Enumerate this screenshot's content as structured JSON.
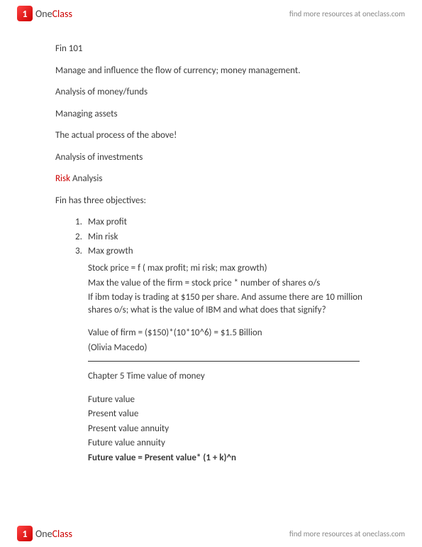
{
  "brand": {
    "icon_bg_start": "#ff4444",
    "icon_bg_end": "#cc0000",
    "one": "One",
    "class": "Class",
    "tagline": "find more resources at oneclass.com"
  },
  "colors": {
    "text": "#3a3a3a",
    "risk": "#cc0000",
    "tagline": "#888888",
    "divider": "#333333",
    "background": "#ffffff"
  },
  "typography": {
    "body_fontsize": 13,
    "tagline_fontsize": 11,
    "brand_fontsize": 14
  },
  "doc": {
    "title": "Fin 101",
    "p1": "Manage and influence the flow of currency; money management.",
    "p2": "Analysis of money/funds",
    "p3": "Managing assets",
    "p4": "The actual process of the above!",
    "p5": "Analysis of investments",
    "risk_word": "Risk",
    "p6_rest": " Analysis",
    "p7": "Fin has three objectives:",
    "objectives": [
      "Max profit",
      "Min risk",
      "Max growth"
    ],
    "sub1": "Stock price = f ( max profit; mi risk; max growth)",
    "sub2": "Max the value of the firm = stock price * number of shares o/s",
    "sub3": "If ibm today is trading at $150 per share. And assume there are 10 million shares o/s; what is the value of IBM and what does that signify?",
    "sub4": "Value of firm = ($150)*(10*10^6) = $1.5 Billion",
    "sub5": "(Olivia Macedo)",
    "chapter": "Chapter 5 Time value of money",
    "c1": "Future value",
    "c2": "Present value",
    "c3": "Present value annuity",
    "c4": "Future value annuity",
    "formula": "Future value = Present value* (1 + k)^n"
  }
}
